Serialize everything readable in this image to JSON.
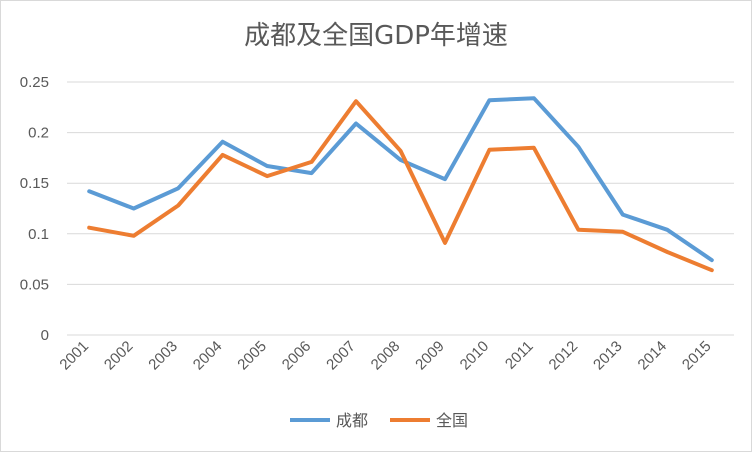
{
  "chart_data": {
    "type": "line",
    "title": "成都及全国GDP年增速",
    "categories": [
      "2001",
      "2002",
      "2003",
      "2004",
      "2005",
      "2006",
      "2007",
      "2008",
      "2009",
      "2010",
      "2011",
      "2012",
      "2013",
      "2014",
      "2015"
    ],
    "series": [
      {
        "name": "成都",
        "color": "#5b9bd5",
        "values": [
          0.142,
          0.125,
          0.145,
          0.191,
          0.167,
          0.16,
          0.209,
          0.173,
          0.154,
          0.232,
          0.234,
          0.186,
          0.119,
          0.104,
          0.074
        ]
      },
      {
        "name": "全国",
        "color": "#ed7d31",
        "values": [
          0.106,
          0.098,
          0.128,
          0.178,
          0.157,
          0.171,
          0.231,
          0.182,
          0.091,
          0.183,
          0.185,
          0.104,
          0.102,
          0.082,
          0.064
        ]
      }
    ],
    "ylim": [
      0,
      0.25
    ],
    "yticks": [
      "0",
      "0.05",
      "0.1",
      "0.15",
      "0.2",
      "0.25"
    ],
    "ytick_values": [
      0,
      0.05,
      0.1,
      0.15,
      0.2,
      0.25
    ],
    "grid": true,
    "legend_position": "bottom"
  }
}
